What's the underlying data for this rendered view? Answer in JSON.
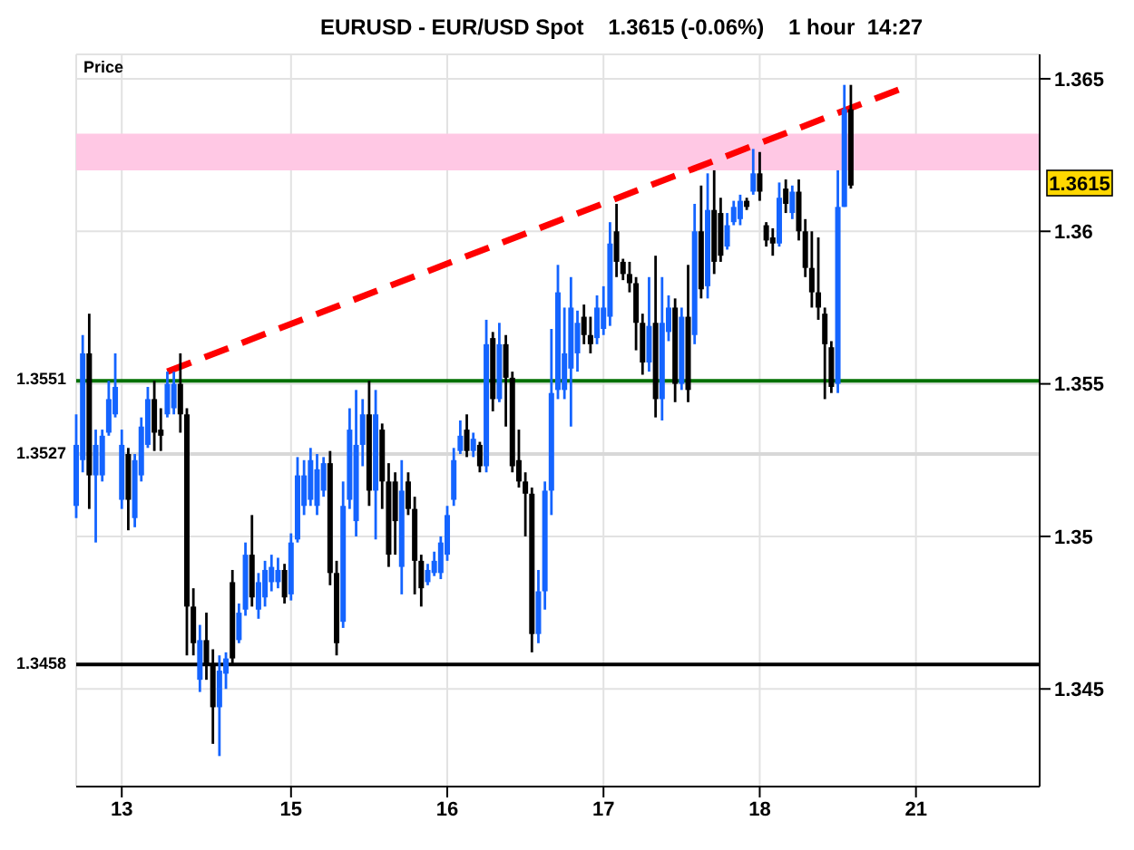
{
  "chart_data": {
    "type": "candlestick",
    "title": "EURUSD - EUR/USD Spot    1.3615 (-0.06%)    1 hour  14:27",
    "ylabel": "Price",
    "categories": [
      null,
      null,
      null,
      null,
      null,
      null,
      null,
      "13",
      null,
      null,
      null,
      null,
      null,
      null,
      null,
      null,
      null,
      null,
      null,
      null,
      null,
      null,
      null,
      null,
      null,
      null,
      null,
      null,
      null,
      null,
      null,
      null,
      null,
      "15",
      null,
      null,
      null,
      null,
      null,
      null,
      null,
      null,
      null,
      null,
      null,
      null,
      null,
      null,
      null,
      null,
      null,
      null,
      null,
      null,
      null,
      null,
      null,
      "16",
      null,
      null,
      null,
      null,
      null,
      null,
      null,
      null,
      null,
      null,
      null,
      null,
      null,
      null,
      null,
      null,
      null,
      null,
      null,
      null,
      null,
      null,
      null,
      "17",
      null,
      null,
      null,
      null,
      null,
      null,
      null,
      null,
      null,
      null,
      null,
      null,
      null,
      null,
      null,
      null,
      null,
      null,
      null,
      null,
      null,
      null,
      null,
      "18",
      null,
      null,
      null,
      null,
      null,
      null,
      null,
      null,
      null,
      null,
      null,
      null,
      null,
      null,
      null,
      null,
      null,
      null,
      null,
      null,
      null,
      null,
      null,
      "21",
      null,
      null,
      null,
      null,
      null,
      null,
      null,
      null,
      null,
      null,
      null,
      null,
      null,
      null,
      null,
      null,
      null,
      null,
      null
    ],
    "ohlc": [
      [
        1.351,
        1.354,
        1.3506,
        1.353
      ],
      [
        1.3525,
        1.3566,
        1.3521,
        1.356
      ],
      [
        1.356,
        1.3573,
        1.3509,
        1.352
      ],
      [
        1.352,
        1.3535,
        1.3498,
        1.353
      ],
      [
        1.352,
        1.3535,
        1.3518,
        1.3533
      ],
      [
        1.3534,
        1.3551,
        1.3533,
        1.3545
      ],
      [
        1.354,
        1.356,
        1.3539,
        1.3549
      ],
      [
        1.3512,
        1.3535,
        1.3509,
        1.353
      ],
      [
        1.3527,
        1.3529,
        1.3502,
        1.3512
      ],
      [
        1.3506,
        1.3527,
        1.3503,
        1.3525
      ],
      [
        1.352,
        1.3539,
        1.3518,
        1.3536
      ],
      [
        1.353,
        1.3549,
        1.3529,
        1.3545
      ],
      [
        1.3545,
        1.3551,
        1.3528,
        1.3534
      ],
      [
        1.3535,
        1.3542,
        1.3528,
        1.3533
      ],
      [
        1.354,
        1.3554,
        1.3539,
        1.355
      ],
      [
        1.3542,
        1.3554,
        1.354,
        1.355
      ],
      [
        1.355,
        1.356,
        1.3534,
        1.354
      ],
      [
        1.354,
        1.3542,
        1.3461,
        1.3477
      ],
      [
        1.3477,
        1.3483,
        1.3461,
        1.3465
      ],
      [
        1.3453,
        1.3471,
        1.3449,
        1.3466
      ],
      [
        1.3466,
        1.3475,
        1.3453,
        1.3458
      ],
      [
        1.3458,
        1.3463,
        1.3432,
        1.3444
      ],
      [
        1.3444,
        1.3461,
        1.3428,
        1.3456
      ],
      [
        1.3455,
        1.3462,
        1.345,
        1.346
      ],
      [
        1.3485,
        1.3489,
        1.3458,
        1.346
      ],
      [
        1.3466,
        1.3478,
        1.3465,
        1.3475
      ],
      [
        1.3476,
        1.3498,
        1.3474,
        1.3494
      ],
      [
        1.3494,
        1.3507,
        1.3477,
        1.348
      ],
      [
        1.3476,
        1.3488,
        1.3473,
        1.3485
      ],
      [
        1.348,
        1.3492,
        1.3477,
        1.3489
      ],
      [
        1.3485,
        1.3494,
        1.3482,
        1.349
      ],
      [
        1.3485,
        1.3493,
        1.3483,
        1.3489
      ],
      [
        1.3489,
        1.3491,
        1.3478,
        1.348
      ],
      [
        1.3481,
        1.3501,
        1.3479,
        1.3498
      ],
      [
        1.3499,
        1.3526,
        1.3498,
        1.352
      ],
      [
        1.351,
        1.3525,
        1.3507,
        1.352
      ],
      [
        1.3512,
        1.3529,
        1.351,
        1.3525
      ],
      [
        1.351,
        1.3527,
        1.3507,
        1.3522
      ],
      [
        1.3515,
        1.3526,
        1.3513,
        1.3524
      ],
      [
        1.3524,
        1.3528,
        1.3484,
        1.3488
      ],
      [
        1.3488,
        1.3492,
        1.3461,
        1.3465
      ],
      [
        1.3472,
        1.3518,
        1.347,
        1.351
      ],
      [
        1.3512,
        1.3542,
        1.3509,
        1.3535
      ],
      [
        1.3505,
        1.3548,
        1.35,
        1.353
      ],
      [
        1.353,
        1.3545,
        1.3523,
        1.354
      ],
      [
        1.354,
        1.3551,
        1.351,
        1.3515
      ],
      [
        1.3515,
        1.3548,
        1.3499,
        1.354
      ],
      [
        1.3535,
        1.3537,
        1.3509,
        1.3518
      ],
      [
        1.3518,
        1.3524,
        1.349,
        1.3494
      ],
      [
        1.3518,
        1.3521,
        1.3494,
        1.3505
      ],
      [
        1.349,
        1.3525,
        1.3481,
        1.3515
      ],
      [
        1.3518,
        1.3521,
        1.3507,
        1.3509
      ],
      [
        1.3509,
        1.3513,
        1.3481,
        1.3492
      ],
      [
        1.3492,
        1.3494,
        1.3477,
        1.3483
      ],
      [
        1.3485,
        1.3491,
        1.3484,
        1.3489
      ],
      [
        1.3488,
        1.3495,
        1.3487,
        1.3492
      ],
      [
        1.3488,
        1.35,
        1.3486,
        1.3498
      ],
      [
        1.3494,
        1.351,
        1.3492,
        1.3507
      ],
      [
        1.3512,
        1.3529,
        1.351,
        1.3525
      ],
      [
        1.3528,
        1.3538,
        1.3527,
        1.3533
      ],
      [
        1.3535,
        1.354,
        1.3526,
        1.3528
      ],
      [
        1.3528,
        1.3534,
        1.3526,
        1.3532
      ],
      [
        1.353,
        1.3531,
        1.3521,
        1.3523
      ],
      [
        1.3523,
        1.3571,
        1.3521,
        1.3563
      ],
      [
        1.3565,
        1.3567,
        1.3541,
        1.3545
      ],
      [
        1.3545,
        1.357,
        1.3544,
        1.3563
      ],
      [
        1.3563,
        1.3566,
        1.3536,
        1.3552
      ],
      [
        1.3552,
        1.3554,
        1.3521,
        1.3523
      ],
      [
        1.3525,
        1.3535,
        1.3516,
        1.3518
      ],
      [
        1.3518,
        1.3521,
        1.35,
        1.3514
      ],
      [
        1.3514,
        1.3516,
        1.3462,
        1.3468
      ],
      [
        1.3468,
        1.3489,
        1.3465,
        1.3482
      ],
      [
        1.3482,
        1.3518,
        1.3476,
        1.3515
      ],
      [
        1.3515,
        1.3568,
        1.3507,
        1.3547
      ],
      [
        1.3548,
        1.3589,
        1.3545,
        1.358
      ],
      [
        1.3548,
        1.3575,
        1.3545,
        1.356
      ],
      [
        1.3555,
        1.3585,
        1.3536,
        1.3575
      ],
      [
        1.356,
        1.3574,
        1.3554,
        1.357
      ],
      [
        1.3572,
        1.3576,
        1.3563,
        1.3566
      ],
      [
        1.3566,
        1.3572,
        1.356,
        1.3563
      ],
      [
        1.3565,
        1.3579,
        1.3563,
        1.3575
      ],
      [
        1.3568,
        1.3582,
        1.3566,
        1.3575
      ],
      [
        1.3572,
        1.3603,
        1.3569,
        1.3596
      ],
      [
        1.36,
        1.3609,
        1.3585,
        1.359
      ],
      [
        1.359,
        1.3591,
        1.3584,
        1.3586
      ],
      [
        1.3586,
        1.359,
        1.358,
        1.3583
      ],
      [
        1.3583,
        1.3585,
        1.3561,
        1.357
      ],
      [
        1.357,
        1.3573,
        1.3553,
        1.3557
      ],
      [
        1.3557,
        1.3585,
        1.3554,
        1.3569
      ],
      [
        1.357,
        1.3592,
        1.3539,
        1.3545
      ],
      [
        1.3545,
        1.3585,
        1.3538,
        1.357
      ],
      [
        1.3567,
        1.3579,
        1.3564,
        1.3575
      ],
      [
        1.3575,
        1.3578,
        1.3544,
        1.355
      ],
      [
        1.355,
        1.3575,
        1.3548,
        1.3572
      ],
      [
        1.3572,
        1.3589,
        1.3544,
        1.3548
      ],
      [
        1.3566,
        1.3609,
        1.3563,
        1.36
      ],
      [
        1.36,
        1.3615,
        1.3578,
        1.3581
      ],
      [
        1.3582,
        1.3619,
        1.3578,
        1.3607
      ],
      [
        1.3607,
        1.362,
        1.3586,
        1.359
      ],
      [
        1.3606,
        1.3611,
        1.359,
        1.3592
      ],
      [
        1.3595,
        1.3606,
        1.3594,
        1.3602
      ],
      [
        1.3603,
        1.361,
        1.3602,
        1.3608
      ],
      [
        1.3604,
        1.3612,
        1.3602,
        1.361
      ],
      [
        1.361,
        1.3611,
        1.3607,
        1.3608
      ],
      [
        1.3613,
        1.3627,
        1.3612,
        1.3619
      ],
      [
        1.3619,
        1.3626,
        1.361,
        1.3613
      ],
      [
        1.3602,
        1.3603,
        1.3595,
        1.3597
      ],
      [
        1.3598,
        1.3601,
        1.3592,
        1.3596
      ],
      [
        1.3596,
        1.3616,
        1.3595,
        1.3611
      ],
      [
        1.3614,
        1.3617,
        1.3606,
        1.3609
      ],
      [
        1.3606,
        1.3615,
        1.3604,
        1.3613
      ],
      [
        1.3613,
        1.3617,
        1.3597,
        1.36
      ],
      [
        1.36,
        1.3604,
        1.3585,
        1.3588
      ],
      [
        1.3588,
        1.36,
        1.3575,
        1.358
      ],
      [
        1.358,
        1.3598,
        1.3571,
        1.3575
      ],
      [
        1.3573,
        1.3575,
        1.3545,
        1.3563
      ],
      [
        1.3562,
        1.3564,
        1.3547,
        1.3549
      ],
      [
        1.355,
        1.362,
        1.3547,
        1.3608
      ],
      [
        1.3608,
        1.3648,
        1.3608,
        1.364
      ],
      [
        1.364,
        1.3648,
        1.3614,
        1.3615
      ],
      null,
      null,
      null,
      null,
      null,
      null,
      null,
      null,
      null,
      null,
      null,
      null,
      null,
      null,
      null,
      null,
      null,
      null,
      null,
      null,
      null,
      null,
      null,
      null,
      null,
      null,
      null,
      null,
      null
    ],
    "colors": [
      "#1464ff",
      "#1464ff",
      "#000000",
      "#1464ff",
      "#1464ff",
      "#1464ff",
      "#1464ff",
      "#1464ff",
      "#000000",
      "#1464ff",
      "#1464ff",
      "#1464ff",
      "#000000",
      "#000000",
      "#1464ff",
      "#1464ff",
      "#000000",
      "#000000",
      "#000000",
      "#1464ff",
      "#000000",
      "#000000",
      "#1464ff",
      "#1464ff",
      "#000000",
      "#1464ff",
      "#1464ff",
      "#000000",
      "#1464ff",
      "#1464ff",
      "#1464ff",
      "#1464ff",
      "#000000",
      "#1464ff",
      "#1464ff",
      "#1464ff",
      "#1464ff",
      "#1464ff",
      "#1464ff",
      "#000000",
      "#000000",
      "#1464ff",
      "#1464ff",
      "#1464ff",
      "#1464ff",
      "#000000",
      "#1464ff",
      "#000000",
      "#000000",
      "#000000",
      "#1464ff",
      "#000000",
      "#000000",
      "#000000",
      "#1464ff",
      "#1464ff",
      "#1464ff",
      "#1464ff",
      "#1464ff",
      "#1464ff",
      "#000000",
      "#1464ff",
      "#000000",
      "#1464ff",
      "#000000",
      "#1464ff",
      "#000000",
      "#000000",
      "#000000",
      "#000000",
      "#000000",
      "#1464ff",
      "#1464ff",
      "#1464ff",
      "#1464ff",
      "#1464ff",
      "#1464ff",
      "#1464ff",
      "#000000",
      "#000000",
      "#1464ff",
      "#1464ff",
      "#1464ff",
      "#000000",
      "#000000",
      "#000000",
      "#000000",
      "#000000",
      "#1464ff",
      "#000000",
      "#1464ff",
      "#1464ff",
      "#000000",
      "#1464ff",
      "#000000",
      "#1464ff",
      "#000000",
      "#1464ff",
      "#000000",
      "#000000",
      "#1464ff",
      "#1464ff",
      "#1464ff",
      "#000000",
      "#1464ff",
      "#000000",
      "#000000",
      "#000000",
      "#1464ff",
      "#000000",
      "#1464ff",
      "#000000",
      "#000000",
      "#000000",
      "#000000",
      "#000000",
      "#000000",
      "#1464ff",
      "#1464ff",
      "#000000",
      null,
      null,
      null,
      null,
      null,
      null,
      null,
      null,
      null,
      null,
      null,
      null,
      null,
      null,
      null,
      null,
      null,
      null,
      null,
      null,
      null,
      null,
      null,
      null,
      null,
      null,
      null,
      null,
      null
    ],
    "series": [
      {
        "type": "line",
        "color": "#ff0000",
        "line_style": "dashed",
        "values": [
          null,
          null,
          null,
          null,
          null,
          null,
          null,
          null,
          null,
          null,
          null,
          null,
          null,
          null,
          1.3554,
          null,
          null,
          null,
          null,
          null,
          null,
          null,
          null,
          null,
          null,
          null,
          null,
          null,
          null,
          null,
          null,
          null,
          null,
          null,
          null,
          null,
          null,
          null,
          null,
          null,
          null,
          null,
          null,
          null,
          null,
          null,
          null,
          null,
          null,
          null,
          null,
          null,
          null,
          null,
          null,
          null,
          null,
          null,
          null,
          null,
          null,
          null,
          null,
          null,
          null,
          null,
          null,
          null,
          null,
          null,
          null,
          null,
          null,
          null,
          null,
          null,
          null,
          null,
          null,
          null,
          null,
          null,
          null,
          null,
          null,
          null,
          null,
          null,
          null,
          null,
          null,
          null,
          null,
          null,
          null,
          null,
          null,
          null,
          null,
          null,
          null,
          null,
          null,
          null,
          null,
          null,
          null,
          null,
          null,
          null,
          null,
          null,
          null,
          null,
          null,
          null,
          null,
          null,
          null,
          null,
          null,
          null,
          null,
          null,
          null,
          null,
          null,
          1.3647,
          null,
          null,
          null,
          null,
          null,
          null,
          null,
          null,
          null,
          null,
          null,
          null,
          null,
          null,
          null,
          null,
          null,
          null,
          null,
          null,
          null
        ]
      }
    ],
    "ylim": [
      1.3418,
      1.3658
    ],
    "yticks": [
      1.345,
      1.35,
      1.355,
      1.36,
      1.365
    ],
    "grid": true,
    "ref_lines": [
      {
        "axis": "y",
        "value": 1.3551,
        "label": "1.3551",
        "color": "#007000"
      },
      {
        "axis": "y",
        "value": 1.3527,
        "label": "1.3527",
        "color": "#d8d8d8"
      },
      {
        "axis": "y",
        "value": 1.3458,
        "label": "1.3458",
        "color": "#000000"
      }
    ],
    "bands": [
      {
        "axis": "y",
        "from": 1.362,
        "to": 1.3632,
        "color": "#ffc8e4"
      }
    ],
    "annotations": [
      "1.3615"
    ]
  }
}
